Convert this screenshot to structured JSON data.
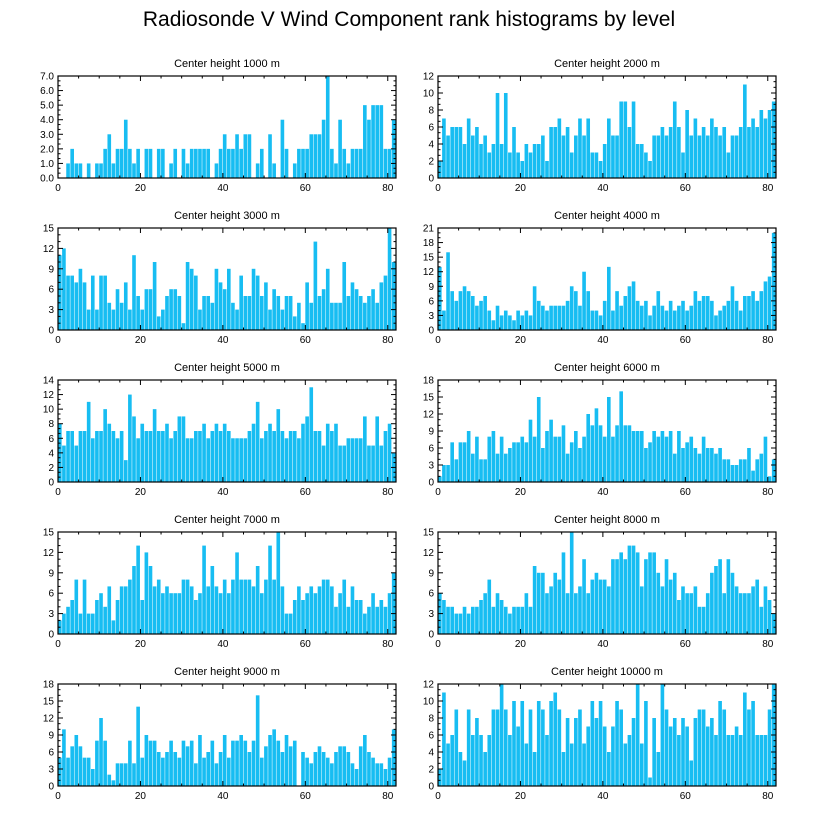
{
  "title": "Radiosonde V Wind Component rank histograms by level",
  "colors": {
    "bar": "#17bdf2",
    "axis": "#000000"
  },
  "chart_data": [
    {
      "type": "bar",
      "title": "Center height 1000 m",
      "xlabel": "",
      "ylabel": "",
      "xlim": [
        0,
        82
      ],
      "ylim": [
        0,
        7.0
      ],
      "xticks": [
        "0",
        "20",
        "40",
        "60",
        "80"
      ],
      "yticks": [
        "0.0",
        "1.0",
        "2.0",
        "3.0",
        "4.0",
        "5.0",
        "6.0",
        "7.0"
      ],
      "values": [
        0,
        0,
        1,
        2,
        1,
        1,
        0,
        1,
        0,
        1,
        1,
        2,
        3,
        1,
        2,
        2,
        4,
        2,
        1,
        2,
        0,
        2,
        2,
        0,
        2,
        2,
        0,
        1,
        2,
        0,
        2,
        1,
        2,
        2,
        2,
        2,
        2,
        0,
        1,
        2,
        3,
        2,
        2,
        3,
        2,
        3,
        3,
        0,
        1,
        2,
        0,
        3,
        1,
        0,
        4,
        2,
        0,
        1,
        2,
        2,
        2,
        3,
        3,
        3,
        4,
        7,
        2,
        1,
        4,
        2,
        1,
        2,
        2,
        2,
        5,
        4,
        5,
        5,
        5,
        2,
        2,
        4
      ]
    },
    {
      "type": "bar",
      "title": "Center height 2000 m",
      "xlabel": "",
      "ylabel": "",
      "xlim": [
        0,
        82
      ],
      "ylim": [
        0,
        12
      ],
      "xticks": [
        "0",
        "20",
        "40",
        "60",
        "80"
      ],
      "yticks": [
        "0",
        "2",
        "4",
        "6",
        "8",
        "10",
        "12"
      ],
      "values": [
        2,
        7,
        5,
        6,
        6,
        6,
        4,
        7,
        5,
        6,
        4,
        5,
        3,
        4,
        10,
        4,
        10,
        3,
        6,
        3,
        2,
        4,
        3,
        4,
        4,
        5,
        2,
        6,
        6,
        7,
        5,
        6,
        3,
        5,
        7,
        5,
        7,
        3,
        3,
        2,
        4,
        7,
        5,
        5,
        9,
        9,
        6,
        9,
        4,
        4,
        3,
        2,
        5,
        5,
        6,
        5,
        6,
        9,
        6,
        3,
        8,
        5,
        7,
        5,
        6,
        5,
        7,
        6,
        5,
        6,
        3,
        5,
        5,
        6,
        11,
        6,
        7,
        6,
        8,
        7,
        8,
        9
      ]
    },
    {
      "type": "bar",
      "title": "Center height 3000 m",
      "xlabel": "",
      "ylabel": "",
      "xlim": [
        0,
        82
      ],
      "ylim": [
        0,
        15
      ],
      "xticks": [
        "0",
        "20",
        "40",
        "60",
        "80"
      ],
      "yticks": [
        "0",
        "3",
        "6",
        "9",
        "12",
        "15"
      ],
      "values": [
        11,
        12,
        8,
        8,
        7,
        9,
        7,
        3,
        8,
        3,
        8,
        8,
        4,
        3,
        6,
        4,
        7,
        3,
        11,
        5,
        3,
        6,
        6,
        10,
        2,
        3,
        5,
        6,
        6,
        5,
        1,
        10,
        9,
        8,
        3,
        5,
        5,
        4,
        9,
        7,
        6,
        9,
        4,
        3,
        8,
        5,
        5,
        9,
        8,
        5,
        7,
        3,
        6,
        5,
        3,
        5,
        5,
        2,
        4,
        1,
        7,
        4,
        13,
        5,
        6,
        9,
        4,
        4,
        4,
        10,
        5,
        7,
        6,
        5,
        4,
        5,
        6,
        4,
        7,
        8,
        15,
        10
      ]
    },
    {
      "type": "bar",
      "title": "Center height 4000 m",
      "xlabel": "",
      "ylabel": "",
      "xlim": [
        0,
        82
      ],
      "ylim": [
        0,
        21
      ],
      "xticks": [
        "0",
        "20",
        "40",
        "60",
        "80"
      ],
      "yticks": [
        "0",
        "3",
        "6",
        "9",
        "12",
        "15",
        "18",
        "21"
      ],
      "values": [
        13,
        4,
        16,
        8,
        6,
        8,
        9,
        8,
        7,
        5,
        6,
        7,
        4,
        2,
        5,
        3,
        4,
        3,
        2,
        4,
        3,
        4,
        3,
        9,
        6,
        5,
        4,
        5,
        5,
        5,
        5,
        6,
        9,
        8,
        5,
        12,
        8,
        4,
        4,
        3,
        6,
        13,
        4,
        8,
        5,
        7,
        9,
        10,
        6,
        5,
        6,
        3,
        5,
        8,
        5,
        4,
        6,
        4,
        5,
        6,
        4,
        5,
        8,
        6,
        7,
        7,
        6,
        3,
        4,
        5,
        6,
        9,
        6,
        4,
        7,
        7,
        8,
        6,
        8,
        10,
        11,
        20
      ]
    },
    {
      "type": "bar",
      "title": "Center height 5000 m",
      "xlabel": "",
      "ylabel": "",
      "xlim": [
        0,
        82
      ],
      "ylim": [
        0,
        14
      ],
      "xticks": [
        "0",
        "20",
        "40",
        "60",
        "80"
      ],
      "yticks": [
        "0",
        "2",
        "4",
        "6",
        "8",
        "10",
        "12",
        "14"
      ],
      "values": [
        8,
        5,
        7,
        7,
        5,
        7,
        7,
        11,
        6,
        7,
        7,
        10,
        8,
        7,
        6,
        7,
        3,
        12,
        9,
        6,
        8,
        7,
        7,
        10,
        7,
        7,
        8,
        6,
        7,
        9,
        9,
        6,
        6,
        7,
        7,
        8,
        6,
        7,
        8,
        7,
        8,
        7,
        6,
        6,
        6,
        6,
        7,
        8,
        11,
        6,
        7,
        8,
        7,
        10,
        7,
        6,
        7,
        7,
        6,
        8,
        9,
        13,
        7,
        7,
        5,
        8,
        7,
        8,
        5,
        5,
        6,
        6,
        6,
        6,
        9,
        5,
        5,
        9,
        5,
        7,
        8,
        4
      ]
    },
    {
      "type": "bar",
      "title": "Center height 6000 m",
      "xlabel": "",
      "ylabel": "",
      "xlim": [
        0,
        82
      ],
      "ylim": [
        0,
        18
      ],
      "xticks": [
        "0",
        "20",
        "40",
        "60",
        "80"
      ],
      "yticks": [
        "0",
        "3",
        "6",
        "9",
        "12",
        "15",
        "18"
      ],
      "values": [
        1,
        3,
        3,
        7,
        4,
        7,
        7,
        9,
        5,
        8,
        4,
        4,
        8,
        9,
        5,
        8,
        5,
        6,
        7,
        7,
        8,
        7,
        11,
        8,
        15,
        6,
        9,
        11,
        8,
        8,
        10,
        5,
        7,
        9,
        6,
        8,
        12,
        10,
        13,
        10,
        8,
        15,
        8,
        10,
        16,
        10,
        10,
        9,
        9,
        9,
        6,
        7,
        9,
        8,
        9,
        8,
        9,
        5,
        9,
        6,
        7,
        8,
        6,
        5,
        8,
        6,
        6,
        5,
        6,
        4,
        4,
        3,
        3,
        4,
        4,
        6,
        2,
        4,
        5,
        8,
        1,
        4
      ]
    },
    {
      "type": "bar",
      "title": "Center height 7000 m",
      "xlabel": "",
      "ylabel": "",
      "xlim": [
        0,
        82
      ],
      "ylim": [
        0,
        15
      ],
      "xticks": [
        "0",
        "20",
        "40",
        "60",
        "80"
      ],
      "yticks": [
        "0",
        "3",
        "6",
        "9",
        "12",
        "15"
      ],
      "values": [
        2,
        3,
        4,
        5,
        8,
        3,
        8,
        3,
        3,
        5,
        6,
        4,
        7,
        2,
        5,
        7,
        7,
        8,
        10,
        13,
        5,
        12,
        10,
        7,
        8,
        6,
        7,
        6,
        6,
        6,
        8,
        8,
        7,
        5,
        6,
        13,
        7,
        10,
        7,
        6,
        8,
        6,
        8,
        12,
        8,
        8,
        8,
        7,
        10,
        6,
        8,
        13,
        8,
        15,
        7,
        3,
        3,
        5,
        7,
        5,
        6,
        7,
        6,
        7,
        8,
        8,
        7,
        4,
        6,
        8,
        4,
        7,
        5,
        5,
        3,
        4,
        6,
        4,
        5,
        4,
        6,
        9
      ]
    },
    {
      "type": "bar",
      "title": "Center height 8000 m",
      "xlabel": "",
      "ylabel": "",
      "xlim": [
        0,
        82
      ],
      "ylim": [
        0,
        15
      ],
      "xticks": [
        "0",
        "20",
        "40",
        "60",
        "80"
      ],
      "yticks": [
        "0",
        "3",
        "6",
        "9",
        "12",
        "15"
      ],
      "values": [
        6,
        5,
        4,
        4,
        3,
        3,
        4,
        3,
        4,
        4,
        5,
        6,
        8,
        4,
        6,
        5,
        4,
        3,
        4,
        4,
        4,
        6,
        4,
        10,
        9,
        9,
        6,
        7,
        9,
        8,
        12,
        6,
        15,
        6,
        7,
        11,
        6,
        8,
        9,
        8,
        8,
        7,
        11,
        11,
        12,
        11,
        13,
        13,
        12,
        7,
        11,
        12,
        12,
        9,
        7,
        11,
        8,
        9,
        5,
        7,
        6,
        6,
        7,
        4,
        4,
        6,
        9,
        10,
        11,
        6,
        11,
        9,
        7,
        6,
        6,
        6,
        7,
        8,
        4,
        7,
        5,
        3
      ]
    },
    {
      "type": "bar",
      "title": "Center height 9000 m",
      "xlabel": "",
      "ylabel": "",
      "xlim": [
        0,
        82
      ],
      "ylim": [
        0,
        18
      ],
      "xticks": [
        "0",
        "20",
        "40",
        "60",
        "80"
      ],
      "yticks": [
        "0",
        "3",
        "6",
        "9",
        "12",
        "15",
        "18"
      ],
      "values": [
        5,
        10,
        5,
        7,
        9,
        7,
        5,
        5,
        3,
        8,
        12,
        8,
        2,
        1,
        4,
        4,
        4,
        8,
        4,
        14,
        5,
        9,
        8,
        8,
        6,
        5,
        6,
        8,
        6,
        5,
        8,
        7,
        8,
        4,
        9,
        5,
        6,
        8,
        4,
        6,
        9,
        5,
        8,
        8,
        9,
        8,
        6,
        8,
        16,
        5,
        7,
        9,
        10,
        8,
        6,
        9,
        7,
        8,
        0,
        6,
        5,
        4,
        6,
        7,
        6,
        5,
        4,
        6,
        7,
        7,
        6,
        4,
        3,
        7,
        9,
        6,
        5,
        4,
        4,
        3,
        5,
        10
      ]
    },
    {
      "type": "bar",
      "title": "Center height 10000 m",
      "xlabel": "",
      "ylabel": "",
      "xlim": [
        0,
        82
      ],
      "ylim": [
        0,
        12
      ],
      "xticks": [
        "0",
        "20",
        "40",
        "60",
        "80"
      ],
      "yticks": [
        "0",
        "2",
        "4",
        "6",
        "8",
        "10",
        "12"
      ],
      "values": [
        2,
        11,
        5,
        6,
        9,
        4,
        3,
        9,
        6,
        8,
        6,
        4,
        6,
        9,
        9,
        12,
        9,
        6,
        10,
        7,
        10,
        5,
        9,
        4,
        10,
        9,
        6,
        10,
        11,
        9,
        4,
        8,
        5,
        8,
        9,
        5,
        7,
        10,
        8,
        10,
        7,
        4,
        7,
        10,
        9,
        5,
        6,
        8,
        12,
        5,
        10,
        1,
        8,
        4,
        12,
        9,
        7,
        8,
        6,
        8,
        7,
        3,
        8,
        9,
        9,
        7,
        8,
        6,
        10,
        9,
        6,
        6,
        7,
        6,
        11,
        9,
        10,
        6,
        6,
        6,
        9,
        12
      ]
    }
  ]
}
